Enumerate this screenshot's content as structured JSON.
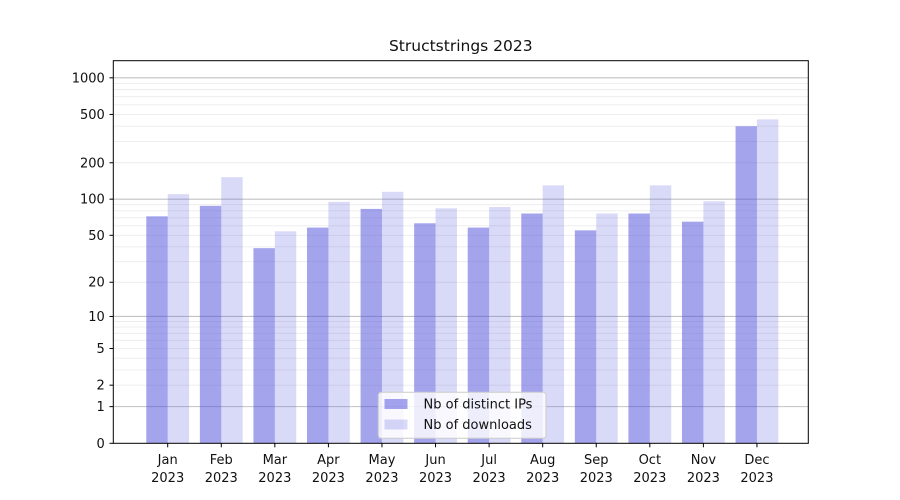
{
  "title": "Structstrings 2023",
  "chart_data": {
    "type": "bar",
    "title": "Structstrings 2023",
    "categories": [
      "Jan 2023",
      "Feb 2023",
      "Mar 2023",
      "Apr 2023",
      "May 2023",
      "Jun 2023",
      "Jul 2023",
      "Aug 2023",
      "Sep 2023",
      "Oct 2023",
      "Nov 2023",
      "Dec 2023"
    ],
    "series": [
      {
        "name": "Nb of distinct IPs",
        "color": "rgba(80,80,221,0.52)",
        "values": [
          72,
          88,
          39,
          58,
          83,
          63,
          58,
          76,
          55,
          76,
          65,
          400
        ]
      },
      {
        "name": "Nb of downloads",
        "color": "rgba(80,80,221,0.22)",
        "values": [
          110,
          152,
          54,
          95,
          115,
          84,
          86,
          130,
          76,
          130,
          96,
          455
        ]
      }
    ],
    "xlabel": "",
    "ylabel": "",
    "y_scale": "log1p",
    "y_ticks": [
      0,
      1,
      2,
      5,
      10,
      20,
      50,
      100,
      200,
      500,
      1000
    ],
    "ylim": [
      0,
      1400
    ],
    "grid": "both",
    "legend_position": "lower center"
  },
  "colors": {
    "background": "#ffffff",
    "grid_major": "#c2c2c2",
    "grid_minor": "#ececec",
    "axis": "#000000",
    "tick": "#000000",
    "legend_bg": "rgba(255,255,255,0.8)",
    "legend_border": "#cccccc",
    "text": "#111111"
  }
}
